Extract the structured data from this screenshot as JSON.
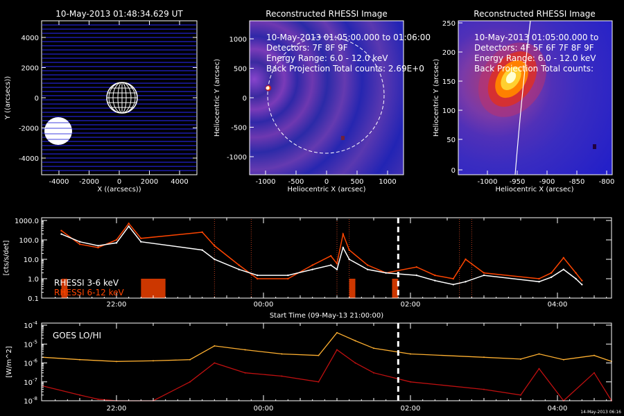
{
  "panels": {
    "p1": {
      "title": "10-May-2013 01:48:34.629 UT",
      "xlabel": "X ((arcsecs))",
      "ylabel": "Y ((arcsecs))",
      "xticks": [
        "-4000",
        "-2000",
        "0",
        "2000",
        "4000"
      ],
      "yticks": [
        "4000",
        "2000",
        "0",
        "-2000",
        "-4000"
      ]
    },
    "p2": {
      "title": "Reconstructed RHESSI Image",
      "lines": [
        "10-May-2013 01:05:00.000 to 01:06:00",
        "Detectors: 7F 8F 9F",
        "Energy Range: 6.0 - 12.0 keV",
        "Back Projection     Total counts: 2.69E+0"
      ],
      "xlabel": "Heliocentric X (arcsec)",
      "ylabel": "Heliocentric Y (arcsec)",
      "xticks": [
        "-1000",
        "-500",
        "0",
        "500",
        "1000"
      ],
      "yticks": [
        "1000",
        "500",
        "0",
        "-500",
        "-1000"
      ]
    },
    "p3": {
      "title": "Reconstructed RHESSI Image",
      "lines": [
        "10-May-2013 01:05:00.000 to",
        "Detectors: 4F 5F 6F 7F 8F 9F",
        "Energy Range: 6.0 - 12.0 keV",
        "Back Projection     Total counts:"
      ],
      "xlabel": "Heliocentric X (arcsec)",
      "ylabel": "Heliocentric Y (arcsec)",
      "xticks": [
        "-1000",
        "-950",
        "-900",
        "-850",
        "-800"
      ],
      "yticks": [
        "250",
        "200",
        "150",
        "100",
        "50",
        "0"
      ]
    }
  },
  "colors": {
    "rhessi_low": "#ffffff",
    "rhessi_high": "#ff4500",
    "goes_lo": "#ffb030",
    "goes_hi": "#c01010",
    "marker": "#ffffff"
  },
  "chart_data": [
    {
      "type": "line",
      "ylabel": "[cts/s/det]",
      "xlabel": "Start Time (09-May-13 21:00:00)",
      "y_scale": "log",
      "ylim": [
        0.1,
        1000
      ],
      "yticks": [
        "1000.0",
        "100.0",
        "10.0",
        "1.0",
        "0.1"
      ],
      "xticks": [
        "22:00",
        "00:00",
        "02:00",
        "04:00"
      ],
      "legend": [
        "RHESSI  3-6 keV",
        "RHESSI  6-12 keV"
      ],
      "marker_time": "01:50",
      "series": [
        {
          "name": "RHESSI  3-6 keV",
          "x": [
            "21:15",
            "21:30",
            "21:45",
            "22:00",
            "22:10",
            "22:20",
            "23:10",
            "23:20",
            "23:40",
            "23:55",
            "00:20",
            "00:40",
            "00:55",
            "01:00",
            "01:05",
            "01:10",
            "01:25",
            "01:40",
            "02:05",
            "02:20",
            "02:35",
            "02:45",
            "03:00",
            "03:45",
            "03:55",
            "04:05",
            "04:15",
            "04:20"
          ],
          "values": [
            200,
            80,
            50,
            70,
            500,
            80,
            30,
            10,
            3,
            1.5,
            1.5,
            3,
            5,
            3,
            40,
            10,
            3,
            2,
            1.5,
            0.8,
            0.5,
            0.7,
            1.5,
            0.7,
            1.2,
            3,
            1,
            0.5
          ]
        },
        {
          "name": "RHESSI  6-12 keV",
          "x": [
            "21:15",
            "21:30",
            "21:45",
            "22:00",
            "22:10",
            "22:20",
            "23:10",
            "23:20",
            "23:40",
            "23:55",
            "00:20",
            "00:40",
            "00:55",
            "01:00",
            "01:05",
            "01:10",
            "01:25",
            "01:40",
            "02:05",
            "02:20",
            "02:35",
            "02:45",
            "03:00",
            "03:45",
            "03:55",
            "04:05",
            "04:15",
            "04:20"
          ],
          "values": [
            300,
            60,
            40,
            100,
            700,
            120,
            250,
            50,
            5,
            1.0,
            1.0,
            5,
            15,
            6,
            200,
            30,
            5,
            2,
            4,
            1.5,
            1.0,
            10,
            2.0,
            1.0,
            2,
            12,
            2,
            0.8
          ]
        }
      ]
    },
    {
      "type": "line",
      "ylabel": "[W/m^2]",
      "xlabel": "Start Time (09-May-13 21:00:00)",
      "y_scale": "log",
      "ylim": [
        1e-08,
        0.0001
      ],
      "yticks": [
        "10^-4",
        "10^-5",
        "10^-6",
        "10^-7",
        "10^-8"
      ],
      "xticks": [
        "22:00",
        "00:00",
        "02:00",
        "04:00"
      ],
      "legend": [
        "GOES LO/HI"
      ],
      "marker_time": "01:50",
      "footer": "14-May-2013 06:16",
      "series": [
        {
          "name": "GOES LO",
          "x": [
            "21:00",
            "21:30",
            "22:00",
            "22:30",
            "23:00",
            "23:20",
            "23:45",
            "00:15",
            "00:45",
            "01:00",
            "01:15",
            "01:30",
            "02:00",
            "03:00",
            "03:30",
            "03:45",
            "04:05",
            "04:30",
            "04:55"
          ],
          "values": [
            2e-06,
            1.5e-06,
            1.2e-06,
            1.3e-06,
            1.5e-06,
            8e-06,
            5e-06,
            3e-06,
            2.5e-06,
            4e-05,
            1.5e-05,
            6e-06,
            3e-06,
            2e-06,
            1.6e-06,
            3e-06,
            1.5e-06,
            2.5e-06,
            1.2e-06
          ]
        },
        {
          "name": "GOES HI",
          "x": [
            "21:00",
            "21:30",
            "21:45",
            "22:00",
            "22:30",
            "23:00",
            "23:20",
            "23:45",
            "00:15",
            "00:45",
            "01:00",
            "01:15",
            "01:30",
            "02:00",
            "03:00",
            "03:30",
            "03:45",
            "04:05",
            "04:30",
            "04:55"
          ],
          "values": [
            6e-08,
            2e-08,
            1.2e-08,
            1e-08,
            1e-08,
            1e-07,
            1e-06,
            3e-07,
            2e-07,
            1e-07,
            5e-06,
            1e-06,
            3e-07,
            1e-07,
            4e-08,
            2e-08,
            5e-07,
            1e-08,
            3e-07,
            1e-08
          ]
        }
      ]
    }
  ]
}
